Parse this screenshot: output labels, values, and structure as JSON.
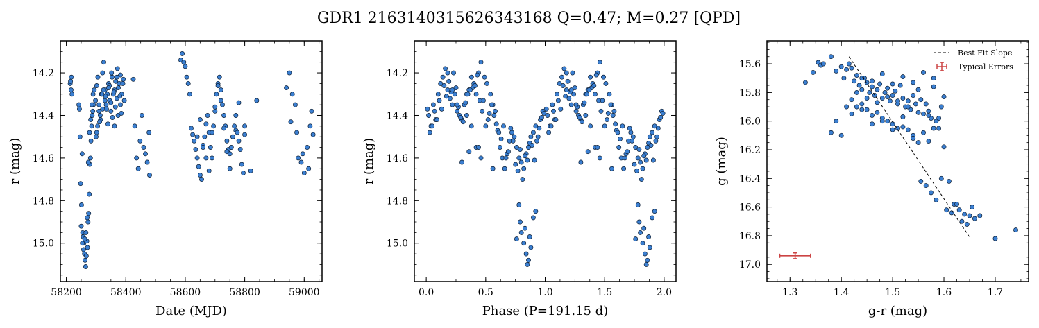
{
  "title": "GDR1 2163140315626343168  Q=0.47; M=0.27 [QPD]",
  "colors": {
    "points": "#3b7fd1",
    "point_edge": "#0d1e33",
    "errorbar": "#cc4444",
    "fit_line": "#000000"
  },
  "chart_data": [
    {
      "type": "scatter",
      "xlabel": "Date (MJD)",
      "ylabel": "r (mag)",
      "xlim": [
        58180,
        59060
      ],
      "ylim": [
        15.18,
        14.05
      ],
      "y_inverted": true,
      "xticks": [
        58200,
        58400,
        58600,
        58800,
        59000
      ],
      "xticklabels": [
        "58200",
        "58400",
        "58600",
        "58800",
        "59000"
      ],
      "yticks": [
        14.2,
        14.4,
        14.6,
        14.8,
        15.0
      ],
      "yticklabels": [
        "14.2",
        "14.4",
        "14.6",
        "14.8",
        "15.0"
      ],
      "x": [
        58213,
        58216,
        58219,
        58214,
        58217,
        58242,
        58244,
        58246,
        58248,
        58251,
        58253,
        58255,
        58257,
        58259,
        58261,
        58263,
        58265,
        58267,
        58269,
        58271,
        58273,
        58275,
        58277,
        58279,
        58281,
        58283,
        58285,
        58287,
        58289,
        58291,
        58250,
        58254,
        58258,
        58262,
        58266,
        58270,
        58274,
        58278,
        58282,
        58286,
        58290,
        58294,
        58298,
        58302,
        58306,
        58310,
        58314,
        58318,
        58322,
        58326,
        58330,
        58334,
        58338,
        58342,
        58346,
        58350,
        58354,
        58358,
        58362,
        58366,
        58370,
        58374,
        58378,
        58382,
        58386,
        58300,
        58305,
        58310,
        58315,
        58320,
        58325,
        58330,
        58335,
        58340,
        58345,
        58350,
        58355,
        58360,
        58365,
        58370,
        58375,
        58380,
        58385,
        58390,
        58395,
        58302,
        58312,
        58322,
        58332,
        58342,
        58352,
        58362,
        58372,
        58382,
        58392,
        58425,
        58430,
        58436,
        58442,
        58448,
        58454,
        58460,
        58466,
        58472,
        58478,
        58480,
        58585,
        58590,
        58595,
        58600,
        58605,
        58610,
        58615,
        58620,
        58625,
        58630,
        58635,
        58640,
        58645,
        58650,
        58655,
        58660,
        58665,
        58670,
        58675,
        58680,
        58685,
        58690,
        58695,
        58700,
        58705,
        58710,
        58715,
        58720,
        58725,
        58730,
        58735,
        58740,
        58745,
        58750,
        58755,
        58760,
        58765,
        58770,
        58775,
        58780,
        58785,
        58790,
        58795,
        58800,
        58640,
        58650,
        58660,
        58670,
        58680,
        58690,
        58700,
        58710,
        58720,
        58730,
        58740,
        58750,
        58760,
        58770,
        58780,
        58800,
        58820,
        58840,
        58940,
        58950,
        58960,
        58970,
        58980,
        58990,
        59000,
        59010,
        59020,
        59030,
        58955,
        58975,
        58995,
        59015,
        59025
      ],
      "y": [
        14.25,
        14.28,
        14.3,
        14.24,
        14.22,
        14.35,
        14.37,
        14.5,
        14.72,
        14.82,
        14.58,
        14.95,
        14.97,
        15.0,
        15.05,
        15.08,
        15.11,
        15.06,
        14.99,
        15.02,
        14.9,
        14.86,
        14.77,
        14.63,
        14.6,
        14.52,
        14.45,
        14.4,
        14.38,
        14.35,
        14.92,
        15.0,
        15.03,
        14.98,
        14.95,
        14.88,
        14.62,
        14.48,
        14.42,
        14.35,
        14.3,
        14.28,
        14.33,
        14.26,
        14.22,
        14.35,
        14.4,
        14.3,
        14.2,
        14.15,
        14.28,
        14.35,
        14.3,
        14.25,
        14.33,
        14.38,
        14.22,
        14.3,
        14.28,
        14.24,
        14.32,
        14.4,
        14.25,
        14.21,
        14.3,
        14.5,
        14.45,
        14.38,
        14.42,
        14.3,
        14.28,
        14.33,
        14.37,
        14.44,
        14.26,
        14.34,
        14.41,
        14.29,
        14.36,
        14.22,
        14.27,
        14.31,
        14.39,
        14.25,
        14.33,
        14.48,
        14.43,
        14.37,
        14.31,
        14.27,
        14.2,
        14.45,
        14.18,
        14.35,
        14.23,
        14.23,
        14.45,
        14.6,
        14.65,
        14.52,
        14.4,
        14.55,
        14.58,
        14.62,
        14.48,
        14.68,
        14.14,
        14.11,
        14.15,
        14.17,
        14.22,
        14.25,
        14.3,
        14.46,
        14.49,
        14.52,
        14.56,
        14.6,
        14.64,
        14.68,
        14.7,
        14.54,
        14.5,
        14.44,
        14.4,
        14.48,
        14.55,
        14.6,
        14.45,
        14.38,
        14.3,
        14.25,
        14.22,
        14.28,
        14.35,
        14.4,
        14.45,
        14.52,
        14.56,
        14.58,
        14.55,
        14.5,
        14.45,
        14.47,
        14.48,
        14.52,
        14.56,
        14.63,
        14.67,
        14.45,
        14.5,
        14.42,
        14.55,
        14.6,
        14.66,
        14.48,
        14.36,
        14.26,
        14.33,
        14.46,
        14.57,
        14.65,
        14.5,
        14.4,
        14.34,
        14.49,
        14.66,
        14.33,
        14.27,
        14.2,
        14.3,
        14.35,
        14.6,
        14.62,
        14.67,
        14.55,
        14.45,
        14.49,
        14.43,
        14.48,
        14.58,
        14.65,
        14.38
      ],
      "points": []
    },
    {
      "type": "scatter",
      "xlabel": "Phase (P=191.15 d)",
      "ylabel": "r (mag)",
      "xlim": [
        -0.1,
        2.1
      ],
      "ylim": [
        15.18,
        14.05
      ],
      "y_inverted": true,
      "xticks": [
        0.0,
        0.5,
        1.0,
        1.5,
        2.0
      ],
      "xticklabels": [
        "0.0",
        "0.5",
        "1.0",
        "1.5",
        "2.0"
      ],
      "yticks": [
        14.2,
        14.4,
        14.6,
        14.8,
        15.0
      ],
      "yticklabels": [
        "14.2",
        "14.4",
        "14.6",
        "14.8",
        "15.0"
      ],
      "phase_x": [
        0.02,
        0.04,
        0.06,
        0.08,
        0.1,
        0.12,
        0.14,
        0.16,
        0.18,
        0.2,
        0.22,
        0.24,
        0.26,
        0.28,
        0.3,
        0.32,
        0.34,
        0.36,
        0.38,
        0.4,
        0.42,
        0.44,
        0.46,
        0.48,
        0.5,
        0.52,
        0.54,
        0.56,
        0.58,
        0.6,
        0.62,
        0.64,
        0.66,
        0.68,
        0.7,
        0.72,
        0.74,
        0.76,
        0.78,
        0.8,
        0.82,
        0.84,
        0.86,
        0.88,
        0.9,
        0.92,
        0.94,
        0.96,
        0.98,
        0.03,
        0.07,
        0.11,
        0.15,
        0.19,
        0.23,
        0.27,
        0.31,
        0.35,
        0.39,
        0.43,
        0.47,
        0.51,
        0.55,
        0.59,
        0.63,
        0.67,
        0.71,
        0.75,
        0.79,
        0.83,
        0.87,
        0.91,
        0.95,
        0.99,
        0.05,
        0.13,
        0.21,
        0.29,
        0.37,
        0.45,
        0.53,
        0.61,
        0.69,
        0.77,
        0.85,
        0.93,
        0.01,
        0.09,
        0.17,
        0.25,
        0.33,
        0.41,
        0.49,
        0.57,
        0.65,
        0.73,
        0.81,
        0.89,
        0.97,
        0.18,
        0.22,
        0.26,
        0.34,
        0.38,
        0.42,
        0.46,
        0.56,
        0.78,
        0.8,
        0.82,
        0.84,
        0.86,
        0.88,
        0.76,
        0.79,
        0.83,
        0.87,
        0.85,
        0.9,
        0.92,
        0.3,
        0.36,
        0.44
      ],
      "phase_y": [
        14.4,
        14.45,
        14.35,
        14.42,
        14.3,
        14.25,
        14.22,
        14.18,
        14.28,
        14.32,
        14.35,
        14.3,
        14.38,
        14.4,
        14.42,
        14.35,
        14.3,
        14.28,
        14.22,
        14.25,
        14.3,
        14.2,
        14.15,
        14.33,
        14.45,
        14.42,
        14.3,
        14.35,
        14.38,
        14.47,
        14.55,
        14.6,
        14.65,
        14.58,
        14.52,
        14.48,
        14.5,
        14.55,
        14.6,
        14.62,
        14.65,
        14.58,
        14.55,
        14.5,
        14.48,
        14.45,
        14.5,
        14.42,
        14.38,
        14.48,
        14.38,
        14.33,
        14.26,
        14.24,
        14.2,
        14.36,
        14.43,
        14.3,
        14.27,
        14.21,
        14.38,
        14.25,
        14.35,
        14.44,
        14.51,
        14.6,
        14.46,
        14.63,
        14.56,
        14.59,
        14.53,
        14.61,
        14.46,
        14.39,
        14.45,
        14.37,
        14.29,
        14.41,
        14.28,
        14.33,
        14.39,
        14.48,
        14.57,
        14.66,
        14.61,
        14.52,
        14.37,
        14.42,
        14.31,
        14.27,
        14.34,
        14.26,
        14.22,
        14.4,
        14.45,
        14.52,
        14.7,
        14.54,
        14.41,
        14.2,
        14.28,
        14.35,
        14.4,
        14.45,
        14.55,
        14.6,
        14.65,
        14.82,
        14.95,
        15.0,
        15.05,
        15.08,
        15.02,
        14.98,
        14.9,
        14.93,
        14.97,
        15.1,
        14.88,
        14.85,
        14.62,
        14.57,
        14.55
      ],
      "points": []
    },
    {
      "type": "scatter",
      "xlabel": "g-r (mag)",
      "ylabel": "g (mag)",
      "xlim": [
        1.255,
        1.765
      ],
      "ylim": [
        17.12,
        15.44
      ],
      "y_inverted": true,
      "xticks": [
        1.3,
        1.4,
        1.5,
        1.6,
        1.7
      ],
      "xticklabels": [
        "1.3",
        "1.4",
        "1.5",
        "1.6",
        "1.7"
      ],
      "yticks": [
        15.6,
        15.8,
        16.0,
        16.2,
        16.4,
        16.6,
        16.8,
        17.0
      ],
      "yticklabels": [
        "15.6",
        "15.8",
        "16.0",
        "16.2",
        "16.4",
        "16.6",
        "16.8",
        "17.0"
      ],
      "x": [
        1.33,
        1.345,
        1.355,
        1.36,
        1.365,
        1.38,
        1.39,
        1.4,
        1.405,
        1.41,
        1.415,
        1.42,
        1.425,
        1.43,
        1.435,
        1.44,
        1.445,
        1.45,
        1.455,
        1.46,
        1.465,
        1.47,
        1.475,
        1.48,
        1.485,
        1.49,
        1.495,
        1.5,
        1.505,
        1.51,
        1.515,
        1.52,
        1.525,
        1.53,
        1.535,
        1.54,
        1.545,
        1.55,
        1.555,
        1.56,
        1.565,
        1.57,
        1.575,
        1.58,
        1.585,
        1.59,
        1.595,
        1.6,
        1.42,
        1.43,
        1.44,
        1.45,
        1.46,
        1.47,
        1.48,
        1.49,
        1.5,
        1.51,
        1.52,
        1.53,
        1.54,
        1.55,
        1.44,
        1.46,
        1.48,
        1.5,
        1.52,
        1.54,
        1.56,
        1.58,
        1.43,
        1.45,
        1.47,
        1.49,
        1.51,
        1.53,
        1.55,
        1.57,
        1.59,
        1.41,
        1.39,
        1.38,
        1.4,
        1.42,
        1.44,
        1.46,
        1.48,
        1.5,
        1.52,
        1.54,
        1.56,
        1.57,
        1.58,
        1.6,
        1.61,
        1.62,
        1.63,
        1.64,
        1.65,
        1.66,
        1.67,
        1.7,
        1.74,
        1.555,
        1.565,
        1.575,
        1.585,
        1.595,
        1.605,
        1.615,
        1.625,
        1.635,
        1.645,
        1.655
      ],
      "y": [
        15.73,
        15.66,
        15.59,
        15.61,
        15.6,
        15.55,
        15.65,
        15.62,
        15.7,
        15.64,
        15.6,
        15.63,
        15.72,
        15.68,
        15.75,
        15.78,
        15.7,
        15.73,
        15.8,
        15.76,
        15.82,
        15.78,
        15.74,
        15.84,
        15.8,
        15.77,
        15.86,
        15.82,
        15.79,
        15.88,
        15.75,
        15.84,
        15.9,
        15.86,
        15.92,
        15.82,
        15.88,
        15.78,
        15.85,
        15.95,
        15.88,
        15.93,
        15.98,
        15.76,
        16.0,
        16.05,
        15.9,
        15.83,
        15.85,
        15.9,
        15.88,
        15.92,
        15.96,
        15.94,
        15.98,
        16.0,
        16.02,
        16.05,
        15.97,
        16.06,
        16.1,
        16.15,
        15.7,
        15.72,
        15.67,
        15.74,
        15.69,
        15.73,
        15.66,
        15.7,
        15.8,
        15.84,
        15.87,
        15.83,
        15.86,
        15.9,
        15.94,
        15.96,
        15.98,
        15.9,
        16.0,
        16.08,
        16.1,
        15.95,
        15.92,
        16.02,
        16.0,
        16.06,
        16.04,
        16.12,
        16.08,
        16.14,
        16.05,
        16.18,
        16.42,
        16.58,
        16.62,
        16.65,
        16.66,
        16.68,
        16.66,
        16.82,
        16.76,
        16.42,
        16.45,
        16.5,
        16.55,
        16.4,
        16.62,
        16.64,
        16.58,
        16.7,
        16.72,
        16.6
      ],
      "fit_line": {
        "x": [
          1.415,
          1.65
        ],
        "y": [
          15.55,
          16.81
        ]
      },
      "error_bar": {
        "x": 1.31,
        "y": 16.94,
        "xerr": 0.03,
        "yerr": 0.02
      },
      "legend": [
        "Best Fit Slope",
        "Typical Errors"
      ],
      "legend_position": "top-right",
      "points": []
    }
  ]
}
